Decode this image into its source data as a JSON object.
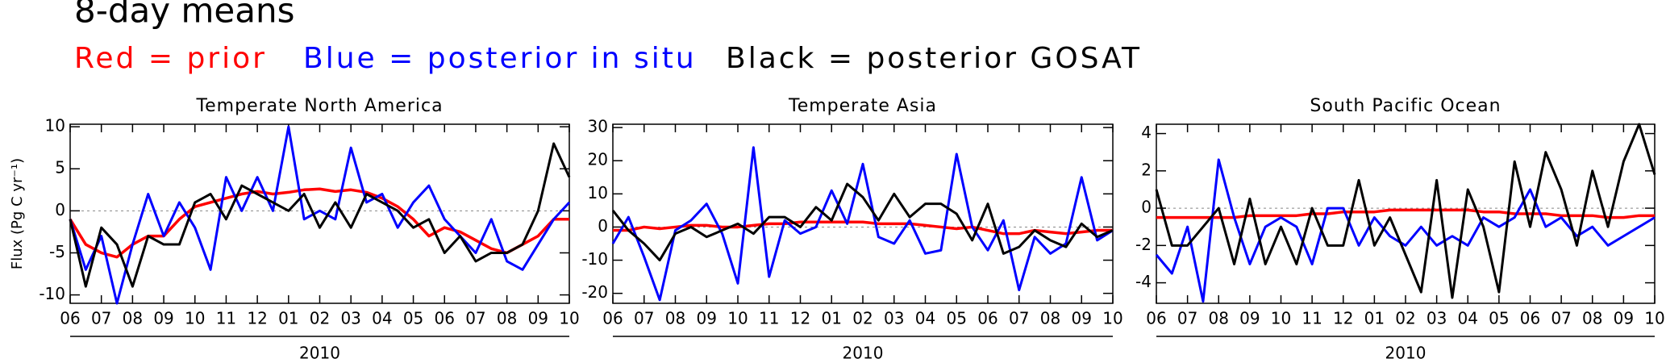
{
  "header": {
    "title": "8-day means",
    "legend": [
      {
        "text": "Red = prior",
        "color": "#ff0000"
      },
      {
        "text": "Blue = posterior in situ",
        "color": "#0000ff"
      },
      {
        "text": "Black = posterior GOSAT",
        "color": "#000000"
      }
    ]
  },
  "chart_data": [
    {
      "type": "line",
      "title": "Temperate North America",
      "ylabel": "Flux (Pg C yr⁻¹)",
      "xlabel": "2010",
      "x": [
        0,
        2,
        4,
        6,
        8,
        10,
        12,
        14,
        16,
        18,
        20,
        22,
        24,
        26,
        28,
        30,
        32,
        34,
        36,
        38,
        40,
        42,
        44,
        46,
        48,
        50,
        52,
        54,
        56,
        58,
        60,
        62,
        64
      ],
      "xlim": [
        0,
        64
      ],
      "ylim": [
        -11,
        10.3
      ],
      "xticks": [
        {
          "value": 0,
          "label": "06"
        },
        {
          "value": 4,
          "label": "07"
        },
        {
          "value": 8,
          "label": "08"
        },
        {
          "value": 12,
          "label": "09"
        },
        {
          "value": 16,
          "label": "10"
        },
        {
          "value": 20,
          "label": "11"
        },
        {
          "value": 24,
          "label": "12"
        },
        {
          "value": 28,
          "label": "01"
        },
        {
          "value": 32,
          "label": "02"
        },
        {
          "value": 36,
          "label": "03"
        },
        {
          "value": 40,
          "label": "04"
        },
        {
          "value": 44,
          "label": "05"
        },
        {
          "value": 48,
          "label": "06"
        },
        {
          "value": 52,
          "label": "07"
        },
        {
          "value": 56,
          "label": "08"
        },
        {
          "value": 60,
          "label": "09"
        },
        {
          "value": 64,
          "label": "10"
        }
      ],
      "yticks": [
        -10,
        -5,
        0,
        5,
        10
      ],
      "zero_line": true,
      "series": [
        {
          "color": "#ff0000",
          "values": [
            -1,
            -4,
            -5,
            -5.5,
            -4,
            -3,
            -3,
            -1,
            0.5,
            1,
            1.5,
            2,
            2.3,
            2,
            2.2,
            2.5,
            2.6,
            2.3,
            2.5,
            2.2,
            1.5,
            0.5,
            -1,
            -3,
            -2,
            -2.5,
            -3.5,
            -4.5,
            -5,
            -4,
            -3,
            -1,
            -1
          ]
        },
        {
          "color": "#0000ff",
          "values": [
            -1,
            -7,
            -3,
            -11,
            -4,
            2,
            -3,
            1,
            -2,
            -7,
            4,
            0,
            4,
            0,
            10,
            -1,
            0,
            -1,
            7.5,
            1,
            2,
            -2,
            1,
            3,
            -1,
            -3,
            -5,
            -1,
            -6,
            -7,
            -4,
            -1,
            1
          ]
        },
        {
          "color": "#000000",
          "values": [
            -1,
            -9,
            -2,
            -4,
            -9,
            -3,
            -4,
            -4,
            1,
            2,
            -1,
            3,
            2,
            1,
            0,
            2,
            -2,
            1,
            -2,
            2,
            1,
            0,
            -2,
            -1,
            -5,
            -3,
            -6,
            -5,
            -5,
            -4,
            0,
            8,
            4
          ]
        }
      ]
    },
    {
      "type": "line",
      "title": "Temperate Asia",
      "xlabel": "2010",
      "x": [
        0,
        2,
        4,
        6,
        8,
        10,
        12,
        14,
        16,
        18,
        20,
        22,
        24,
        26,
        28,
        30,
        32,
        34,
        36,
        38,
        40,
        42,
        44,
        46,
        48,
        50,
        52,
        54,
        56,
        58,
        60,
        62,
        64
      ],
      "xlim": [
        0,
        64
      ],
      "ylim": [
        -23,
        31
      ],
      "xticks": [
        {
          "value": 0,
          "label": "06"
        },
        {
          "value": 4,
          "label": "07"
        },
        {
          "value": 8,
          "label": "08"
        },
        {
          "value": 12,
          "label": "09"
        },
        {
          "value": 16,
          "label": "10"
        },
        {
          "value": 20,
          "label": "11"
        },
        {
          "value": 24,
          "label": "12"
        },
        {
          "value": 28,
          "label": "01"
        },
        {
          "value": 32,
          "label": "02"
        },
        {
          "value": 36,
          "label": "03"
        },
        {
          "value": 40,
          "label": "04"
        },
        {
          "value": 44,
          "label": "05"
        },
        {
          "value": 48,
          "label": "06"
        },
        {
          "value": 52,
          "label": "07"
        },
        {
          "value": 56,
          "label": "08"
        },
        {
          "value": 60,
          "label": "09"
        },
        {
          "value": 64,
          "label": "10"
        }
      ],
      "yticks": [
        -20,
        -10,
        0,
        10,
        20,
        30
      ],
      "zero_line": true,
      "series": [
        {
          "color": "#ff0000",
          "values": [
            -1,
            -1,
            0,
            -0.5,
            0,
            0.5,
            0.5,
            0,
            0,
            0.5,
            1,
            1,
            1.5,
            1.5,
            1.5,
            1.5,
            1.5,
            1,
            1,
            1,
            0.5,
            0,
            -0.5,
            0,
            -1,
            -2,
            -2,
            -1,
            -1.5,
            -2,
            -1.5,
            -1,
            -1
          ]
        },
        {
          "color": "#0000ff",
          "values": [
            -5,
            3,
            -9,
            -22,
            -1,
            2,
            7,
            -2,
            -17,
            24,
            -15,
            2,
            -2,
            0,
            11,
            1,
            19,
            -3,
            -5,
            2,
            -8,
            -7,
            22,
            0,
            -7,
            2,
            -19,
            -3,
            -8,
            -5,
            15,
            -4,
            -1
          ]
        },
        {
          "color": "#000000",
          "values": [
            5,
            -1,
            -5,
            -10,
            -2,
            0,
            -3,
            -1,
            1,
            -2,
            3,
            3,
            0,
            6,
            2,
            13,
            9,
            2,
            10,
            3,
            7,
            7,
            4,
            -4,
            7,
            -8,
            -6,
            -1,
            -4,
            -6,
            1,
            -3,
            -1
          ]
        }
      ]
    },
    {
      "type": "line",
      "title": "South Pacific Ocean",
      "xlabel": "2010",
      "x": [
        0,
        2,
        4,
        6,
        8,
        10,
        12,
        14,
        16,
        18,
        20,
        22,
        24,
        26,
        28,
        30,
        32,
        34,
        36,
        38,
        40,
        42,
        44,
        46,
        48,
        50,
        52,
        54,
        56,
        58,
        60,
        62,
        64
      ],
      "xlim": [
        0,
        64
      ],
      "ylim": [
        -5.1,
        4.5
      ],
      "xticks": [
        {
          "value": 0,
          "label": "06"
        },
        {
          "value": 4,
          "label": "07"
        },
        {
          "value": 8,
          "label": "08"
        },
        {
          "value": 12,
          "label": "09"
        },
        {
          "value": 16,
          "label": "10"
        },
        {
          "value": 20,
          "label": "11"
        },
        {
          "value": 24,
          "label": "12"
        },
        {
          "value": 28,
          "label": "01"
        },
        {
          "value": 32,
          "label": "02"
        },
        {
          "value": 36,
          "label": "03"
        },
        {
          "value": 40,
          "label": "04"
        },
        {
          "value": 44,
          "label": "05"
        },
        {
          "value": 48,
          "label": "06"
        },
        {
          "value": 52,
          "label": "07"
        },
        {
          "value": 56,
          "label": "08"
        },
        {
          "value": 60,
          "label": "09"
        },
        {
          "value": 64,
          "label": "10"
        }
      ],
      "yticks": [
        -4,
        -2,
        0,
        2,
        4
      ],
      "zero_line": true,
      "series": [
        {
          "color": "#ff0000",
          "values": [
            -0.5,
            -0.5,
            -0.5,
            -0.5,
            -0.5,
            -0.5,
            -0.4,
            -0.4,
            -0.4,
            -0.4,
            -0.3,
            -0.3,
            -0.2,
            -0.2,
            -0.2,
            -0.1,
            -0.1,
            -0.1,
            -0.1,
            -0.1,
            -0.1,
            -0.2,
            -0.2,
            -0.3,
            -0.3,
            -0.3,
            -0.4,
            -0.4,
            -0.4,
            -0.5,
            -0.5,
            -0.4,
            -0.4
          ]
        },
        {
          "color": "#0000ff",
          "values": [
            -2.5,
            -3.5,
            -1,
            -5,
            2.6,
            -0.5,
            -3,
            -1,
            -0.5,
            -1,
            -3,
            0,
            0,
            -2,
            -0.5,
            -1.5,
            -2,
            -1,
            -2,
            -1.5,
            -2,
            -0.5,
            -1,
            -0.5,
            1,
            -1,
            -0.5,
            -1.5,
            -1,
            -2,
            -1.5,
            -1,
            -0.5
          ]
        },
        {
          "color": "#000000",
          "values": [
            1,
            -2,
            -2,
            -1,
            0,
            -3,
            0.5,
            -3,
            -1,
            -3,
            0,
            -2,
            -2,
            1.5,
            -2,
            -0.5,
            -2.5,
            -4.5,
            1.5,
            -4.8,
            1,
            -1,
            -4.5,
            2.5,
            -1,
            3,
            1,
            -2,
            2,
            -1,
            2.5,
            4.5,
            1.8
          ]
        }
      ]
    }
  ]
}
